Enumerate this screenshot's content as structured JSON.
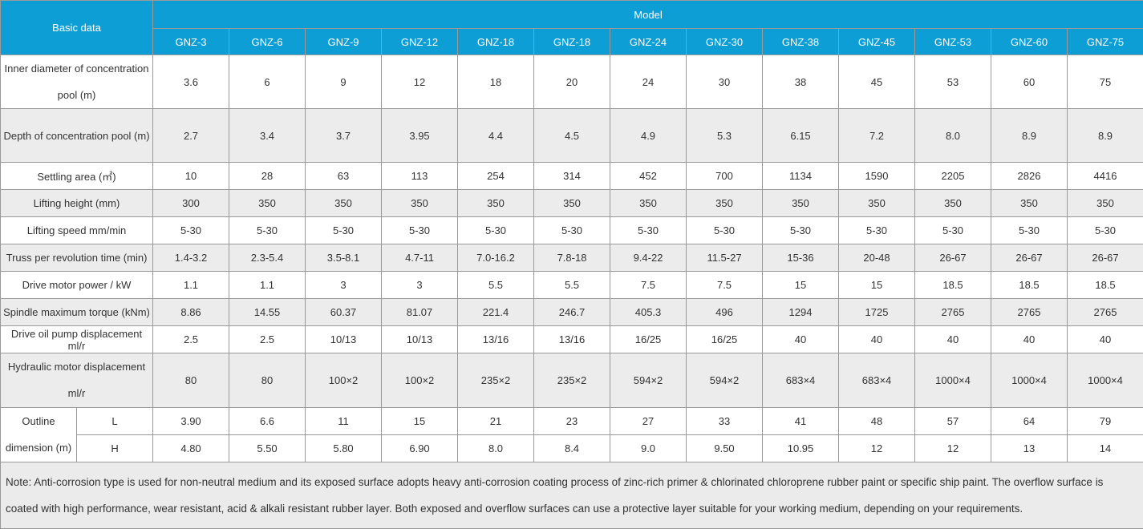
{
  "table": {
    "corner_label": "Basic data",
    "model_header": "Model",
    "models": [
      "GNZ-3",
      "GNZ-6",
      "GNZ-9",
      "GNZ-12",
      "GNZ-18",
      "GNZ-18",
      "GNZ-24",
      "GNZ-30",
      "GNZ-38",
      "GNZ-45",
      "GNZ-53",
      "GNZ-60",
      "GNZ-75"
    ],
    "rows": [
      {
        "label": "Inner diameter of concentration pool  (m)",
        "values": [
          "3.6",
          "6",
          "9",
          "12",
          "18",
          "20",
          "24",
          "30",
          "38",
          "45",
          "53",
          "60",
          "75"
        ]
      },
      {
        "label": "Depth of concentration pool (m)",
        "values": [
          "2.7",
          "3.4",
          "3.7",
          "3.95",
          "4.4",
          "4.5",
          "4.9",
          "5.3",
          "6.15",
          "7.2",
          "8.0",
          "8.9",
          "8.9"
        ]
      },
      {
        "label": "Settling area  (㎡)",
        "values": [
          "10",
          "28",
          "63",
          "113",
          "254",
          "314",
          "452",
          "700",
          "1134",
          "1590",
          "2205",
          "2826",
          "4416"
        ]
      },
      {
        "label": "Lifting height (mm)",
        "values": [
          "300",
          "350",
          "350",
          "350",
          "350",
          "350",
          "350",
          "350",
          "350",
          "350",
          "350",
          "350",
          "350"
        ]
      },
      {
        "label": "Lifting speed mm/min",
        "values": [
          "5-30",
          "5-30",
          "5-30",
          "5-30",
          "5-30",
          "5-30",
          "5-30",
          "5-30",
          "5-30",
          "5-30",
          "5-30",
          "5-30",
          "5-30"
        ]
      },
      {
        "label": "Truss per revolution time (min)",
        "values": [
          "1.4-3.2",
          "2.3-5.4",
          "3.5-8.1",
          "4.7-11",
          "7.0-16.2",
          "7.8-18",
          "9.4-22",
          "11.5-27",
          "15-36",
          "20-48",
          "26-67",
          "26-67",
          "26-67"
        ]
      },
      {
        "label": "Drive motor power / kW",
        "values": [
          "1.1",
          "1.1",
          "3",
          "3",
          "5.5",
          "5.5",
          "7.5",
          "7.5",
          "15",
          "15",
          "18.5",
          "18.5",
          "18.5"
        ]
      },
      {
        "label": "Spindle maximum torque (kNm)",
        "values": [
          "8.86",
          "14.55",
          "60.37",
          "81.07",
          "221.4",
          "246.7",
          "405.3",
          "496",
          "1294",
          "1725",
          "2765",
          "2765",
          "2765"
        ]
      },
      {
        "label": "Drive oil pump displacement ml/r",
        "values": [
          "2.5",
          "2.5",
          "10/13",
          "10/13",
          "13/16",
          "13/16",
          "16/25",
          "16/25",
          "40",
          "40",
          "40",
          "40",
          "40"
        ]
      },
      {
        "label": "Hydraulic motor displacement ml/r",
        "values": [
          "80",
          "80",
          "100×2",
          "100×2",
          "235×2",
          "235×2",
          "594×2",
          "594×2",
          "683×4",
          "683×4",
          "1000×4",
          "1000×4",
          "1000×4"
        ]
      }
    ],
    "outline": {
      "label": "Outline dimension (m)",
      "sub_rows": [
        {
          "label": "L",
          "values": [
            "3.90",
            "6.6",
            "11",
            "15",
            "21",
            "23",
            "27",
            "33",
            "41",
            "48",
            "57",
            "64",
            "79"
          ]
        },
        {
          "label": "H",
          "values": [
            "4.80",
            "5.50",
            "5.80",
            "6.90",
            "8.0",
            "8.4",
            "9.0",
            "9.50",
            "10.95",
            "12",
            "12",
            "13",
            "14"
          ]
        }
      ]
    },
    "note": "Note: Anti-corrosion type is used for non-neutral medium and its exposed surface adopts heavy anti-corrosion coating process of zinc-rich primer & chlorinated chloroprene rubber paint or specific ship paint. The overflow surface is coated with high performance, wear resistant, acid & alkali resistant rubber layer. Both exposed and overflow surfaces can use a protective layer suitable for your working medium, depending on your requirements.",
    "colors": {
      "header_blue": "#0d9ed6",
      "border": "#999999",
      "shaded_row": "#ececec",
      "note_bg": "#ebebeb",
      "text": "#333333",
      "header_text": "#ffffff"
    }
  }
}
